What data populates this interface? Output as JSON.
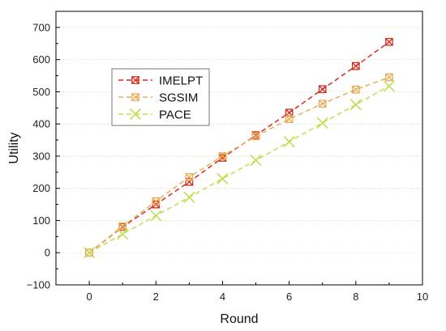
{
  "chart_data": {
    "type": "line",
    "xlabel": "Round",
    "ylabel": "Utility",
    "xlim": [
      -1,
      10
    ],
    "ylim": [
      -100,
      750
    ],
    "x_ticks": [
      0,
      2,
      4,
      6,
      8,
      10
    ],
    "y_ticks": [
      -100,
      0,
      100,
      200,
      300,
      400,
      500,
      600,
      700
    ],
    "legend_position": "upper-left",
    "grid": "horizontal dotted",
    "x": [
      0,
      1,
      2,
      3,
      4,
      5,
      6,
      7,
      8,
      9
    ],
    "series": [
      {
        "name": "IMELPT",
        "color": "#d42a1f",
        "marker": "square-x",
        "values": [
          0,
          80,
          150,
          220,
          295,
          365,
          435,
          508,
          580,
          655
        ]
      },
      {
        "name": "SGSIM",
        "color": "#e8ad58",
        "marker": "square-x",
        "values": [
          0,
          82,
          160,
          235,
          300,
          362,
          415,
          463,
          507,
          545
        ]
      },
      {
        "name": "PACE",
        "color": "#c2dc53",
        "marker": "x",
        "values": [
          0,
          58,
          115,
          172,
          230,
          287,
          345,
          403,
          460,
          518
        ]
      }
    ]
  }
}
